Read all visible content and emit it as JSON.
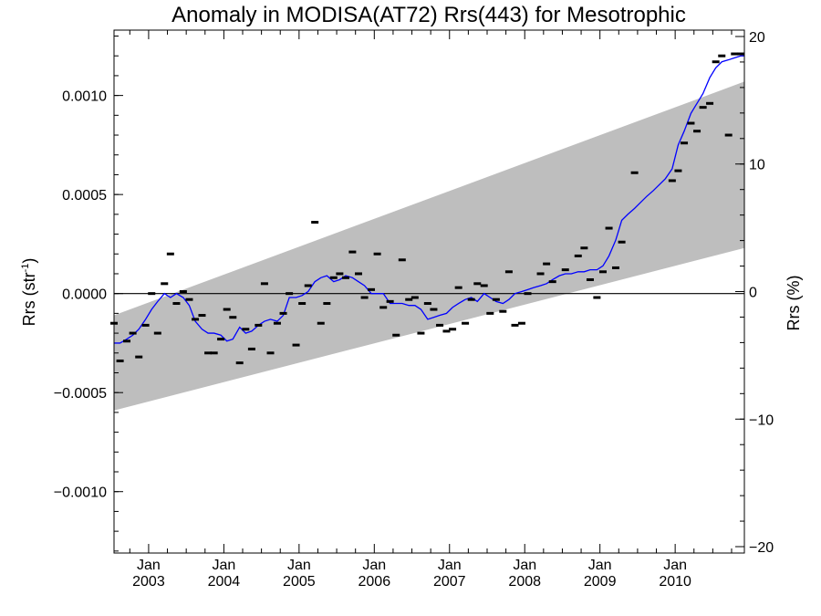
{
  "chart_data": {
    "type": "scatter",
    "title": "Anomaly in MODISA(AT72) Rrs(443) for Mesotrophic",
    "ylabel_left": "Rrs (str",
    "ylabel_left_sup": "-1",
    "ylabel_left_close": ")",
    "ylabel_right": "Rrs (%)",
    "x_range": [
      2002.54,
      2010.92
    ],
    "y_range": [
      -0.00131,
      0.00133
    ],
    "y2_range": [
      -20.5,
      20.5
    ],
    "grid": false,
    "legend": "none",
    "y_ticks": [
      {
        "value": 0.001,
        "label": "0.0010"
      },
      {
        "value": 0.0005,
        "label": "0.0005"
      },
      {
        "value": 0.0,
        "label": "0.0000"
      },
      {
        "value": -0.0005,
        "label": "−0.0005"
      },
      {
        "value": -0.001,
        "label": "−0.0010"
      }
    ],
    "y2_ticks": [
      {
        "value": 20,
        "label": "20"
      },
      {
        "value": 10,
        "label": "10"
      },
      {
        "value": 0,
        "label": "0"
      },
      {
        "value": -10,
        "label": "−10"
      },
      {
        "value": -20,
        "label": "−20"
      }
    ],
    "x_ticks": [
      {
        "value": 2003.0,
        "month": "Jan",
        "year": "2003"
      },
      {
        "value": 2004.0,
        "month": "Jan",
        "year": "2004"
      },
      {
        "value": 2005.0,
        "month": "Jan",
        "year": "2005"
      },
      {
        "value": 2006.0,
        "month": "Jan",
        "year": "2006"
      },
      {
        "value": 2007.0,
        "month": "Jan",
        "year": "2007"
      },
      {
        "value": 2008.0,
        "month": "Jan",
        "year": "2008"
      },
      {
        "value": 2009.0,
        "month": "Jan",
        "year": "2009"
      },
      {
        "value": 2010.0,
        "month": "Jan",
        "year": "2010"
      }
    ],
    "band": {
      "color": "#bebebe",
      "upper": [
        [
          2002.54,
          -0.00011
        ],
        [
          2010.92,
          0.00107
        ]
      ],
      "lower": [
        [
          2002.54,
          -0.00059
        ],
        [
          2010.92,
          0.00023
        ]
      ]
    },
    "monthly_points": {
      "color": "#000000",
      "x": [
        2002.54,
        2002.62,
        2002.71,
        2002.79,
        2002.87,
        2002.96,
        2003.04,
        2003.12,
        2003.21,
        2003.29,
        2003.37,
        2003.46,
        2003.54,
        2003.62,
        2003.71,
        2003.79,
        2003.87,
        2003.96,
        2004.04,
        2004.12,
        2004.21,
        2004.29,
        2004.37,
        2004.46,
        2004.54,
        2004.62,
        2004.71,
        2004.79,
        2004.87,
        2004.96,
        2005.04,
        2005.12,
        2005.21,
        2005.29,
        2005.37,
        2005.46,
        2005.54,
        2005.62,
        2005.71,
        2005.79,
        2005.87,
        2005.96,
        2006.04,
        2006.12,
        2006.21,
        2006.29,
        2006.37,
        2006.46,
        2006.54,
        2006.62,
        2006.71,
        2006.79,
        2006.87,
        2006.96,
        2007.04,
        2007.12,
        2007.21,
        2007.29,
        2007.37,
        2007.46,
        2007.54,
        2007.62,
        2007.71,
        2007.79,
        2007.87,
        2007.96,
        2008.04,
        2008.21,
        2008.29,
        2008.37,
        2008.54,
        2008.71,
        2008.79,
        2008.87,
        2008.96,
        2009.04,
        2009.12,
        2009.21,
        2009.29,
        2009.46,
        2009.96,
        2010.04,
        2010.12,
        2010.21,
        2010.29,
        2010.37,
        2010.46,
        2010.54,
        2010.62,
        2010.71,
        2010.79,
        2010.87
      ],
      "y": [
        -0.00015,
        -0.00034,
        -0.00024,
        -0.0002,
        -0.00032,
        -0.00016,
        0.0,
        -0.0002,
        5e-05,
        0.0002,
        -5e-05,
        1e-05,
        -3e-05,
        -0.00013,
        -0.00011,
        -0.0003,
        -0.0003,
        -0.00023,
        -8e-05,
        -0.00012,
        -0.00035,
        -0.00018,
        -0.00028,
        -0.00016,
        5e-05,
        -0.0003,
        -0.00015,
        -0.0001,
        0.0,
        -0.00026,
        -5e-05,
        4e-05,
        0.00036,
        -0.00015,
        -5e-05,
        8e-05,
        0.0001,
        8e-05,
        0.00021,
        0.0001,
        -2e-05,
        2e-05,
        0.0002,
        -7e-05,
        -4e-05,
        -0.00021,
        0.00017,
        -3e-05,
        -2e-05,
        -0.0002,
        -5e-05,
        -8e-05,
        -0.00016,
        -0.00019,
        -0.00018,
        3e-05,
        -0.00015,
        -3e-05,
        5e-05,
        4e-05,
        -0.0001,
        -3e-05,
        -9e-05,
        0.00011,
        -0.00016,
        -0.00015,
        0.0,
        0.0001,
        0.00015,
        6e-05,
        0.00012,
        0.00019,
        0.00023,
        7e-05,
        -2e-05,
        0.00011,
        0.00033,
        0.00013,
        0.00026,
        0.00061,
        0.00057,
        0.00062,
        0.00076,
        0.00086,
        0.00082,
        0.00094,
        0.00096,
        0.00117,
        0.0012,
        0.0008,
        0.00121,
        0.00121
      ]
    },
    "smoothed_line": {
      "color": "#0000ff",
      "x": [
        2002.54,
        2002.62,
        2002.71,
        2002.79,
        2002.87,
        2002.96,
        2003.04,
        2003.12,
        2003.21,
        2003.29,
        2003.37,
        2003.46,
        2003.54,
        2003.62,
        2003.71,
        2003.79,
        2003.87,
        2003.96,
        2004.04,
        2004.12,
        2004.21,
        2004.29,
        2004.37,
        2004.46,
        2004.54,
        2004.62,
        2004.71,
        2004.79,
        2004.87,
        2004.96,
        2005.04,
        2005.12,
        2005.21,
        2005.29,
        2005.37,
        2005.46,
        2005.54,
        2005.62,
        2005.71,
        2005.79,
        2005.87,
        2005.96,
        2006.04,
        2006.12,
        2006.21,
        2006.29,
        2006.37,
        2006.46,
        2006.54,
        2006.62,
        2006.71,
        2006.79,
        2006.87,
        2006.96,
        2007.04,
        2007.12,
        2007.21,
        2007.29,
        2007.37,
        2007.46,
        2007.54,
        2007.62,
        2007.71,
        2007.79,
        2007.87,
        2007.96,
        2008.04,
        2008.12,
        2008.21,
        2008.29,
        2008.37,
        2008.46,
        2008.54,
        2008.62,
        2008.71,
        2008.79,
        2008.87,
        2008.96,
        2009.04,
        2009.12,
        2009.21,
        2009.29,
        2009.37,
        2009.46,
        2009.54,
        2009.62,
        2009.71,
        2009.79,
        2009.87,
        2009.96,
        2010.04,
        2010.12,
        2010.21,
        2010.29,
        2010.37,
        2010.46,
        2010.54,
        2010.62,
        2010.71,
        2010.79,
        2010.87,
        2010.92
      ],
      "y": [
        -0.00025,
        -0.00025,
        -0.00023,
        -0.00021,
        -0.00018,
        -0.00013,
        -8e-05,
        -4e-05,
        0.0,
        -2e-05,
        0.0,
        -2e-05,
        -6e-05,
        -0.00014,
        -0.00018,
        -0.0002,
        -0.0002,
        -0.00021,
        -0.00024,
        -0.00023,
        -0.00017,
        -0.0002,
        -0.00019,
        -0.00016,
        -0.00014,
        -0.00013,
        -0.00014,
        -0.00011,
        -2e-05,
        -2e-05,
        -1e-05,
        1e-05,
        6e-05,
        8e-05,
        9e-05,
        6e-05,
        7e-05,
        9e-05,
        8e-05,
        6e-05,
        4e-05,
        0.0,
        0.0,
        0.0,
        -5e-05,
        -5e-05,
        -5e-05,
        -6e-05,
        -6e-05,
        -8e-05,
        -0.00013,
        -0.00012,
        -0.00011,
        -0.0001,
        -7e-05,
        -5e-05,
        -3e-05,
        -2e-05,
        -4e-05,
        0.0,
        -2e-05,
        -4e-05,
        -5e-05,
        -3e-05,
        0.0,
        1e-05,
        2e-05,
        3e-05,
        4e-05,
        5e-05,
        7e-05,
        9e-05,
        0.0001,
        0.0001,
        0.00011,
        0.00011,
        0.00012,
        0.00012,
        0.00014,
        0.00019,
        0.00027,
        0.00037,
        0.0004,
        0.00043,
        0.00046,
        0.00049,
        0.00052,
        0.00055,
        0.00058,
        0.00063,
        0.00075,
        0.00082,
        0.00091,
        0.00096,
        0.00101,
        0.00109,
        0.00114,
        0.00117,
        0.00118,
        0.00119,
        0.0012,
        0.0012
      ]
    },
    "zero_line": {
      "value": 0.0,
      "color": "#000000"
    }
  }
}
